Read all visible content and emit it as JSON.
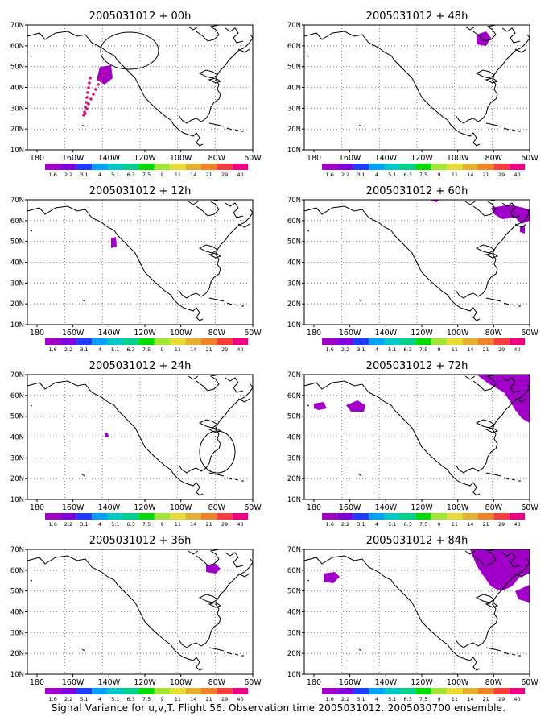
{
  "figure": {
    "caption": "Signal Variance for u,v,T. Flight 56. Observation time 2005031012. 2005030700 ensemble."
  },
  "axes": {
    "y_labels": [
      "70N",
      "60N",
      "50N",
      "40N",
      "30N",
      "20N",
      "10N"
    ],
    "x_labels": [
      "180",
      "160W",
      "140W",
      "120W",
      "100W",
      "80W",
      "60W"
    ]
  },
  "colorbar": {
    "labels": [
      "1.6",
      "2.2",
      "3.1",
      "4",
      "5.1",
      "6.3",
      "7.5",
      "9",
      "11",
      "14",
      "21",
      "29",
      "40"
    ],
    "colors": [
      "#a000c8",
      "#8200dc",
      "#1e3cff",
      "#00a0ff",
      "#00c8c8",
      "#00d28c",
      "#00dc00",
      "#a0e632",
      "#e6dc32",
      "#e6af2d",
      "#f08228",
      "#fa3c3c",
      "#f00082"
    ]
  },
  "panels": [
    {
      "title": "2005031012 + 00h"
    },
    {
      "title": "2005031012 + 48h"
    },
    {
      "title": "2005031012 + 12h"
    },
    {
      "title": "2005031012 + 60h"
    },
    {
      "title": "2005031012 + 24h"
    },
    {
      "title": "2005031012 + 72h"
    },
    {
      "title": "2005031012 + 36h"
    },
    {
      "title": "2005031012 + 84h"
    }
  ],
  "colors": {
    "signal": "#a000c8",
    "obs_points": "#d01070"
  }
}
